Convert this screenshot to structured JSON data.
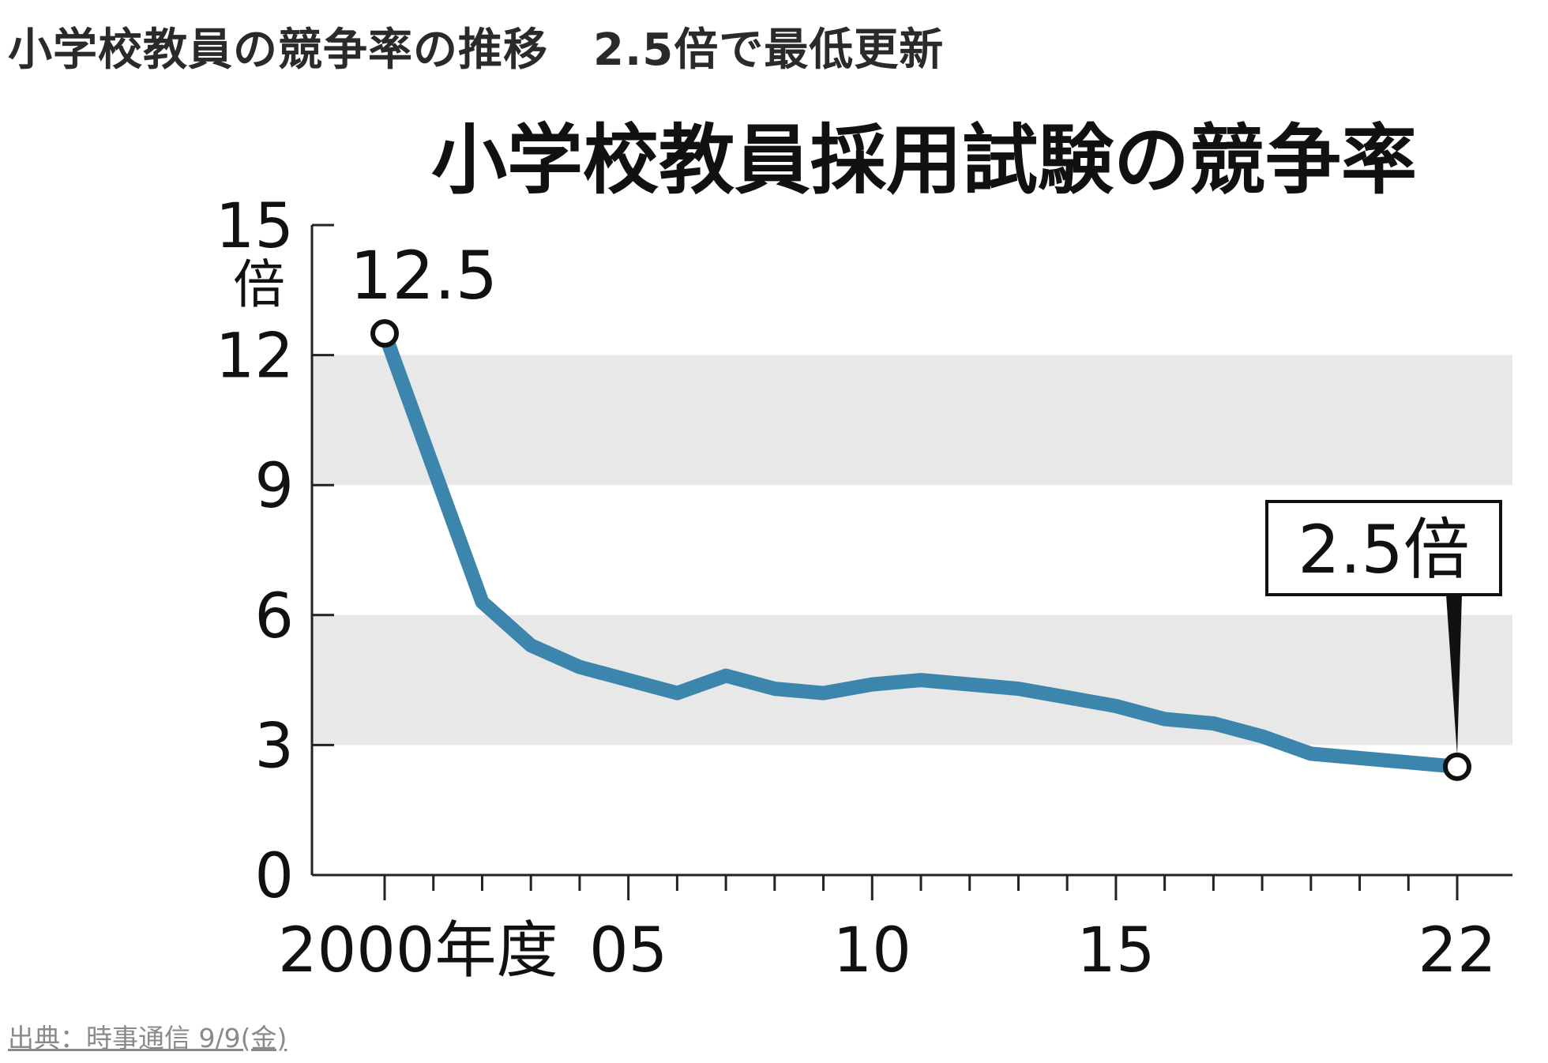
{
  "headline": "小学校教員の競争率の推移　2.5倍で最低更新",
  "source": "出典：時事通信 9/9(金)",
  "chart_data": {
    "type": "line",
    "title": "小学校教員採用試験の競争率",
    "ylabel": "倍",
    "ylim": [
      0,
      15
    ],
    "yticks": [
      0,
      3,
      6,
      9,
      12,
      15
    ],
    "xlim": [
      2000,
      2022
    ],
    "x_tick_labels": [
      {
        "x": 2000,
        "label": "2000年度"
      },
      {
        "x": 2005,
        "label": "05"
      },
      {
        "x": 2010,
        "label": "10"
      },
      {
        "x": 2015,
        "label": "15"
      },
      {
        "x": 2022,
        "label": "22"
      }
    ],
    "bands": [
      [
        3,
        6
      ],
      [
        9,
        12
      ]
    ],
    "band_color": "#e8e8e8",
    "line_color": "#3c86ad",
    "x": [
      2000,
      2001,
      2002,
      2003,
      2004,
      2005,
      2006,
      2007,
      2008,
      2009,
      2010,
      2011,
      2012,
      2013,
      2014,
      2015,
      2016,
      2017,
      2018,
      2019,
      2020,
      2021,
      2022
    ],
    "values": [
      12.5,
      9.4,
      6.3,
      5.3,
      4.8,
      4.5,
      4.2,
      4.6,
      4.3,
      4.2,
      4.4,
      4.5,
      4.4,
      4.3,
      4.1,
      3.9,
      3.6,
      3.5,
      3.2,
      2.8,
      2.7,
      2.6,
      2.5
    ],
    "annotations": [
      {
        "x": 2000,
        "y": 12.5,
        "label": "12.5"
      },
      {
        "x": 2022,
        "y": 2.5,
        "label": "2.5倍"
      }
    ]
  }
}
